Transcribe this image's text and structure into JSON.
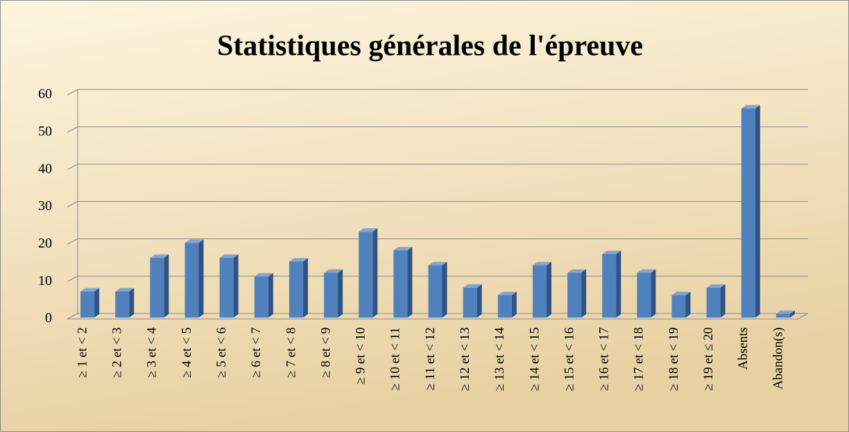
{
  "chart_data": {
    "type": "bar",
    "title": "Statistiques générales de l'épreuve",
    "categories": [
      "≥ 1 et < 2",
      "≥ 2 et < 3",
      "≥ 3 et < 4",
      "≥ 4 et < 5",
      "≥ 5 et < 6",
      "≥ 6 et < 7",
      "≥ 7 et < 8",
      "≥ 8 et < 9",
      "≥ 9 et < 10",
      "≥ 10 et < 11",
      "≥ 11 et < 12",
      "≥ 12 et < 13",
      "≥ 13 et < 14",
      "≥ 14 et < 15",
      "≥ 15 et < 16",
      "≥ 16 et < 17",
      "≥ 17 et < 18",
      "≥ 18 et < 19",
      "≥ 19 et ≤ 20",
      "Absents",
      "Abandon(s)"
    ],
    "values": [
      7,
      7,
      16,
      20,
      16,
      11,
      15,
      12,
      23,
      18,
      14,
      8,
      6,
      14,
      12,
      17,
      12,
      6,
      8,
      56,
      1
    ],
    "color": "#4f81bd",
    "ylim": [
      0,
      60
    ],
    "yticks": [
      0,
      10,
      20,
      30,
      40,
      50,
      60
    ],
    "grid": true
  }
}
